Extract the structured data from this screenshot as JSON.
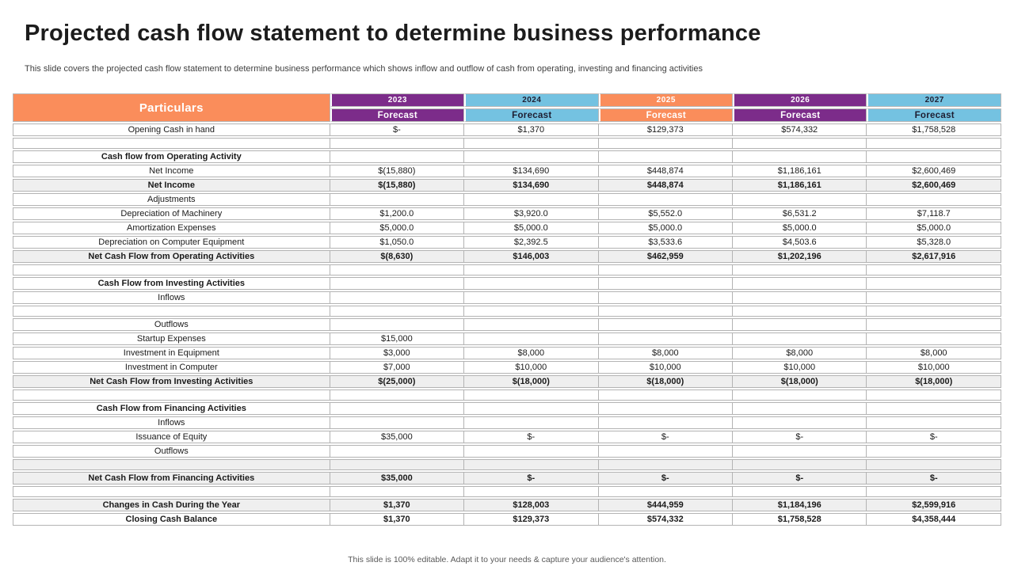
{
  "slide": {
    "title": "Projected cash flow statement to determine business performance",
    "subtitle": "This slide covers the projected cash flow statement to determine business performance which shows inflow and outflow of cash from operating, investing and financing activities",
    "footer": "This slide is 100% editable. Adapt it to your needs & capture your audience's attention."
  },
  "colors": {
    "accent_orange": "#FA8D5B",
    "accent_purple": "#7C2C8A",
    "accent_blue": "#74C2E1",
    "row_shade": "#EFEFEF",
    "grid_border": "#B3B3B3"
  },
  "table": {
    "particulars_label": "Particulars",
    "years": [
      {
        "year": "2023",
        "label": "Forecast",
        "theme": "purple"
      },
      {
        "year": "2024",
        "label": "Forecast",
        "theme": "blue"
      },
      {
        "year": "2025",
        "label": "Forecast",
        "theme": "orange"
      },
      {
        "year": "2026",
        "label": "Forecast",
        "theme": "purple"
      },
      {
        "year": "2027",
        "label": "Forecast",
        "theme": "blue"
      }
    ],
    "rows": [
      {
        "label": "Opening Cash in hand",
        "values": [
          "$-",
          "$1,370",
          "$129,373",
          "$574,332",
          "$1,758,528"
        ],
        "bold": false,
        "shaded": false
      },
      {
        "label": "",
        "values": [
          "",
          "",
          "",
          "",
          ""
        ],
        "bold": false,
        "shaded": false
      },
      {
        "label": "Cash flow from Operating Activity",
        "values": [
          "",
          "",
          "",
          "",
          ""
        ],
        "bold": true,
        "shaded": false
      },
      {
        "label": "Net Income",
        "values": [
          "$(15,880)",
          "$134,690",
          "$448,874",
          "$1,186,161",
          "$2,600,469"
        ],
        "bold": false,
        "shaded": false
      },
      {
        "label": "Net Income",
        "values": [
          "$(15,880)",
          "$134,690",
          "$448,874",
          "$1,186,161",
          "$2,600,469"
        ],
        "bold": true,
        "shaded": true
      },
      {
        "label": "Adjustments",
        "values": [
          "",
          "",
          "",
          "",
          ""
        ],
        "bold": false,
        "shaded": false
      },
      {
        "label": "Depreciation of Machinery",
        "values": [
          "$1,200.0",
          "$3,920.0",
          "$5,552.0",
          "$6,531.2",
          "$7,118.7"
        ],
        "bold": false,
        "shaded": false
      },
      {
        "label": "Amortization Expenses",
        "values": [
          "$5,000.0",
          "$5,000.0",
          "$5,000.0",
          "$5,000.0",
          "$5,000.0"
        ],
        "bold": false,
        "shaded": false
      },
      {
        "label": "Depreciation on Computer Equipment",
        "values": [
          "$1,050.0",
          "$2,392.5",
          "$3,533.6",
          "$4,503.6",
          "$5,328.0"
        ],
        "bold": false,
        "shaded": false
      },
      {
        "label": "Net Cash Flow from Operating Activities",
        "values": [
          "$(8,630)",
          "$146,003",
          "$462,959",
          "$1,202,196",
          "$2,617,916"
        ],
        "bold": true,
        "shaded": true
      },
      {
        "label": "",
        "values": [
          "",
          "",
          "",
          "",
          ""
        ],
        "bold": false,
        "shaded": false
      },
      {
        "label": "Cash Flow from Investing Activities",
        "values": [
          "",
          "",
          "",
          "",
          ""
        ],
        "bold": true,
        "shaded": false
      },
      {
        "label": "Inflows",
        "values": [
          "",
          "",
          "",
          "",
          ""
        ],
        "bold": false,
        "shaded": false
      },
      {
        "label": "",
        "values": [
          "",
          "",
          "",
          "",
          ""
        ],
        "bold": false,
        "shaded": false
      },
      {
        "label": "Outflows",
        "values": [
          "",
          "",
          "",
          "",
          ""
        ],
        "bold": false,
        "shaded": false
      },
      {
        "label": "Startup Expenses",
        "values": [
          "$15,000",
          "",
          "",
          "",
          ""
        ],
        "bold": false,
        "shaded": false
      },
      {
        "label": "Investment in Equipment",
        "values": [
          "$3,000",
          "$8,000",
          "$8,000",
          "$8,000",
          "$8,000"
        ],
        "bold": false,
        "shaded": false
      },
      {
        "label": "Investment in Computer",
        "values": [
          "$7,000",
          "$10,000",
          "$10,000",
          "$10,000",
          "$10,000"
        ],
        "bold": false,
        "shaded": false
      },
      {
        "label": "Net Cash Flow from Investing Activities",
        "values": [
          "$(25,000)",
          "$(18,000)",
          "$(18,000)",
          "$(18,000)",
          "$(18,000)"
        ],
        "bold": true,
        "shaded": true
      },
      {
        "label": "",
        "values": [
          "",
          "",
          "",
          "",
          ""
        ],
        "bold": false,
        "shaded": false
      },
      {
        "label": "Cash Flow from Financing Activities",
        "values": [
          "",
          "",
          "",
          "",
          ""
        ],
        "bold": true,
        "shaded": false
      },
      {
        "label": "Inflows",
        "values": [
          "",
          "",
          "",
          "",
          ""
        ],
        "bold": false,
        "shaded": false
      },
      {
        "label": "Issuance of Equity",
        "values": [
          "$35,000",
          "$-",
          "$-",
          "$-",
          "$-"
        ],
        "bold": false,
        "shaded": false
      },
      {
        "label": "Outflows",
        "values": [
          "",
          "",
          "",
          "",
          ""
        ],
        "bold": false,
        "shaded": false
      },
      {
        "label": "",
        "values": [
          "",
          "",
          "",
          "",
          ""
        ],
        "bold": false,
        "shaded": true
      },
      {
        "label": "Net Cash Flow from Financing Activities",
        "values": [
          "$35,000",
          "$-",
          "$-",
          "$-",
          "$-"
        ],
        "bold": true,
        "shaded": true
      },
      {
        "label": "",
        "values": [
          "",
          "",
          "",
          "",
          ""
        ],
        "bold": false,
        "shaded": false
      },
      {
        "label": "Changes in Cash During the Year",
        "values": [
          "$1,370",
          "$128,003",
          "$444,959",
          "$1,184,196",
          "$2,599,916"
        ],
        "bold": true,
        "shaded": true
      },
      {
        "label": "Closing Cash Balance",
        "values": [
          "$1,370",
          "$129,373",
          "$574,332",
          "$1,758,528",
          "$4,358,444"
        ],
        "bold": true,
        "shaded": false
      }
    ]
  }
}
